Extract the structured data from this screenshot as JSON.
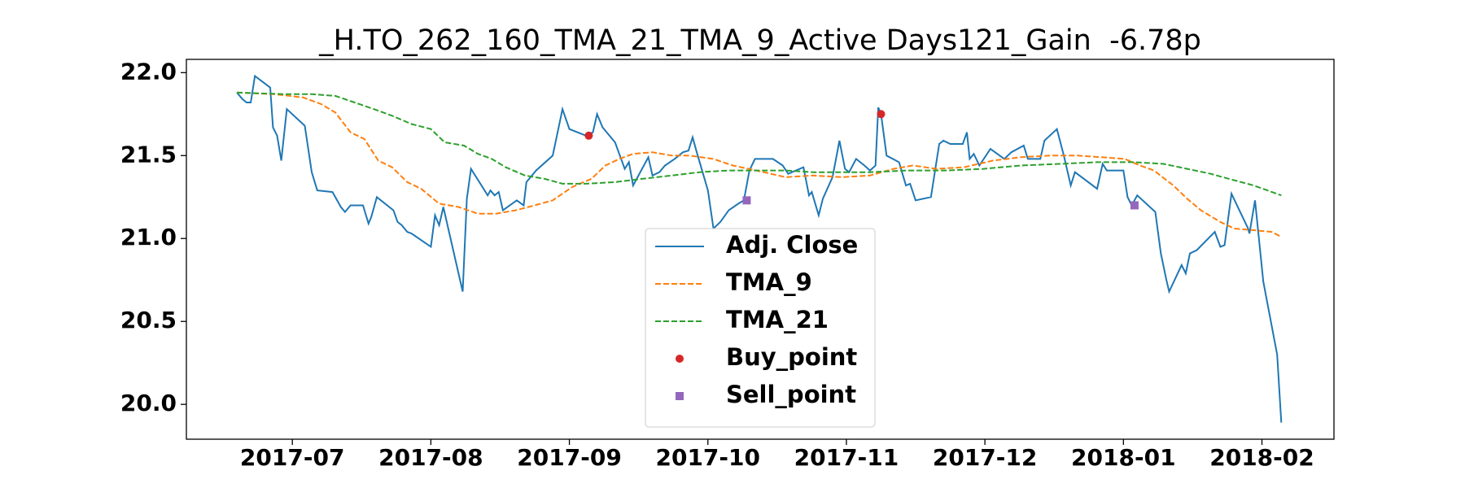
{
  "chart_data": {
    "type": "line",
    "title": "_H.TO_262_160_TMA_21_TMA_9_Active Days121_Gain  -6.78p",
    "xlim": [
      -0.765,
      7.52
    ],
    "xticks": [
      {
        "value": 0,
        "label": "2017-07"
      },
      {
        "value": 1,
        "label": "2017-08"
      },
      {
        "value": 2,
        "label": "2017-09"
      },
      {
        "value": 3,
        "label": "2017-10"
      },
      {
        "value": 4,
        "label": "2017-11"
      },
      {
        "value": 5,
        "label": "2017-12"
      },
      {
        "value": 6,
        "label": "2018-01"
      },
      {
        "value": 7,
        "label": "2018-02"
      }
    ],
    "ylim": [
      19.79,
      22.08
    ],
    "yticks": [
      {
        "value": 20,
        "label": "20.0"
      },
      20.5,
      {
        "value": 21,
        "label": "21.0"
      },
      21.5,
      {
        "value": 22,
        "label": "22.0"
      }
    ],
    "grid": false,
    "legend": "lower center",
    "series": [
      {
        "name": "Adj. Close",
        "color": "#1f77b4",
        "linestyle": "solid",
        "x": [
          -0.4,
          -0.36,
          -0.33,
          -0.3,
          -0.27,
          -0.16,
          -0.14,
          -0.11,
          -0.08,
          -0.04,
          0.09,
          0.14,
          0.18,
          0.29,
          0.35,
          0.38,
          0.42,
          0.51,
          0.55,
          0.57,
          0.61,
          0.73,
          0.76,
          0.79,
          0.83,
          0.86,
          1.0,
          1.03,
          1.06,
          1.09,
          1.23,
          1.26,
          1.29,
          1.41,
          1.43,
          1.46,
          1.49,
          1.52,
          1.62,
          1.67,
          1.69,
          1.76,
          1.88,
          1.95,
          2.0,
          2.12,
          2.17,
          2.2,
          2.24,
          2.33,
          2.4,
          2.43,
          2.46,
          2.57,
          2.6,
          2.65,
          2.69,
          2.76,
          2.82,
          2.86,
          2.89,
          2.92,
          3.0,
          3.04,
          3.09,
          3.15,
          3.22,
          3.26,
          3.3,
          3.34,
          3.47,
          3.54,
          3.58,
          3.69,
          3.73,
          3.75,
          3.8,
          3.83,
          3.9,
          3.95,
          3.99,
          4.02,
          4.07,
          4.13,
          4.17,
          4.21,
          4.23,
          4.25,
          4.29,
          4.38,
          4.43,
          4.46,
          4.5,
          4.61,
          4.67,
          4.7,
          4.75,
          4.84,
          4.87,
          4.89,
          4.92,
          4.96,
          5.04,
          5.14,
          5.19,
          5.28,
          5.31,
          5.4,
          5.43,
          5.52,
          5.57,
          5.62,
          5.65,
          5.81,
          5.85,
          5.88,
          6.0,
          6.03,
          6.06,
          6.1,
          6.23,
          6.27,
          6.31,
          6.33,
          6.42,
          6.45,
          6.48,
          6.53,
          6.66,
          6.7,
          6.73,
          6.78,
          6.9,
          6.91,
          6.95,
          7.01,
          7.11,
          7.14
        ],
        "values": [
          21.88,
          21.84,
          21.82,
          21.82,
          21.98,
          21.91,
          21.67,
          21.62,
          21.47,
          21.78,
          21.68,
          21.4,
          21.29,
          21.28,
          21.19,
          21.16,
          21.2,
          21.2,
          21.09,
          21.13,
          21.25,
          21.17,
          21.1,
          21.08,
          21.04,
          21.03,
          20.95,
          21.14,
          21.08,
          21.19,
          20.68,
          21.24,
          21.42,
          21.26,
          21.29,
          21.26,
          21.28,
          21.17,
          21.23,
          21.2,
          21.34,
          21.41,
          21.5,
          21.78,
          21.66,
          21.62,
          21.64,
          21.75,
          21.67,
          21.58,
          21.42,
          21.46,
          21.32,
          21.49,
          21.38,
          21.4,
          21.44,
          21.48,
          21.52,
          21.53,
          21.61,
          21.52,
          21.29,
          21.06,
          21.1,
          21.17,
          21.21,
          21.23,
          21.41,
          21.48,
          21.48,
          21.44,
          21.39,
          21.43,
          21.26,
          21.28,
          21.14,
          21.24,
          21.37,
          21.59,
          21.42,
          21.4,
          21.48,
          21.44,
          21.41,
          21.44,
          21.79,
          21.75,
          21.5,
          21.46,
          21.32,
          21.33,
          21.23,
          21.25,
          21.57,
          21.59,
          21.57,
          21.57,
          21.64,
          21.48,
          21.51,
          21.44,
          21.54,
          21.48,
          21.52,
          21.56,
          21.48,
          21.48,
          21.59,
          21.66,
          21.5,
          21.32,
          21.4,
          21.3,
          21.45,
          21.41,
          21.41,
          21.25,
          21.2,
          21.26,
          21.16,
          20.91,
          20.75,
          20.68,
          20.84,
          20.79,
          20.91,
          20.93,
          21.04,
          20.95,
          20.96,
          21.27,
          21.06,
          21.03,
          21.23,
          20.74,
          20.3,
          19.89
        ]
      },
      {
        "name": "TMA_9",
        "color": "#ff7f0e",
        "linestyle": "dashed",
        "x": [
          -0.4,
          -0.13,
          0.08,
          0.21,
          0.31,
          0.42,
          0.52,
          0.62,
          0.72,
          0.83,
          0.93,
          1.06,
          1.2,
          1.34,
          1.47,
          1.61,
          1.75,
          1.88,
          2.02,
          2.16,
          2.26,
          2.36,
          2.46,
          2.6,
          2.74,
          2.87,
          3.04,
          3.18,
          3.35,
          3.56,
          3.76,
          3.97,
          4.17,
          4.34,
          4.48,
          4.65,
          4.85,
          5.06,
          5.26,
          5.47,
          5.67,
          5.84,
          6.01,
          6.12,
          6.22,
          6.36,
          6.46,
          6.56,
          6.7,
          6.8,
          6.94,
          7.07,
          7.14
        ],
        "values": [
          21.88,
          21.87,
          21.85,
          21.81,
          21.76,
          21.64,
          21.6,
          21.47,
          21.43,
          21.34,
          21.3,
          21.21,
          21.19,
          21.15,
          21.15,
          21.17,
          21.2,
          21.23,
          21.31,
          21.36,
          21.44,
          21.48,
          21.51,
          21.52,
          21.5,
          21.5,
          21.48,
          21.44,
          21.41,
          21.37,
          21.38,
          21.37,
          21.38,
          21.42,
          21.44,
          21.42,
          21.43,
          21.47,
          21.49,
          21.5,
          21.5,
          21.49,
          21.48,
          21.44,
          21.41,
          21.32,
          21.24,
          21.17,
          21.1,
          21.06,
          21.05,
          21.04,
          21.01
        ]
      },
      {
        "name": "TMA_21",
        "color": "#2ca02c",
        "linestyle": "dashed",
        "x": [
          -0.4,
          -0.06,
          0.14,
          0.31,
          0.45,
          0.59,
          0.72,
          0.86,
          1.0,
          1.1,
          1.24,
          1.34,
          1.44,
          1.54,
          1.68,
          1.82,
          1.95,
          2.12,
          2.33,
          2.53,
          2.74,
          2.94,
          3.15,
          3.35,
          3.56,
          3.76,
          3.97,
          4.17,
          4.44,
          4.72,
          4.99,
          5.26,
          5.54,
          5.81,
          6.08,
          6.29,
          6.46,
          6.63,
          6.76,
          6.94,
          7.04,
          7.14
        ],
        "values": [
          21.88,
          21.87,
          21.87,
          21.86,
          21.82,
          21.78,
          21.74,
          21.69,
          21.66,
          21.58,
          21.56,
          21.51,
          21.48,
          21.43,
          21.38,
          21.36,
          21.33,
          21.33,
          21.34,
          21.36,
          21.38,
          21.4,
          21.41,
          21.41,
          21.41,
          21.4,
          21.4,
          21.4,
          21.41,
          21.41,
          21.42,
          21.44,
          21.45,
          21.46,
          21.46,
          21.45,
          21.42,
          21.39,
          21.36,
          21.32,
          21.29,
          21.26
        ]
      },
      {
        "name": "Buy_point",
        "color": "#d62728",
        "marker": "circle",
        "x": [
          2.14,
          4.25
        ],
        "values": [
          21.62,
          21.75
        ]
      },
      {
        "name": "Sell_point",
        "color": "#9467bd",
        "marker": "square",
        "x": [
          3.28,
          6.08
        ],
        "values": [
          21.23,
          21.2
        ]
      }
    ]
  }
}
